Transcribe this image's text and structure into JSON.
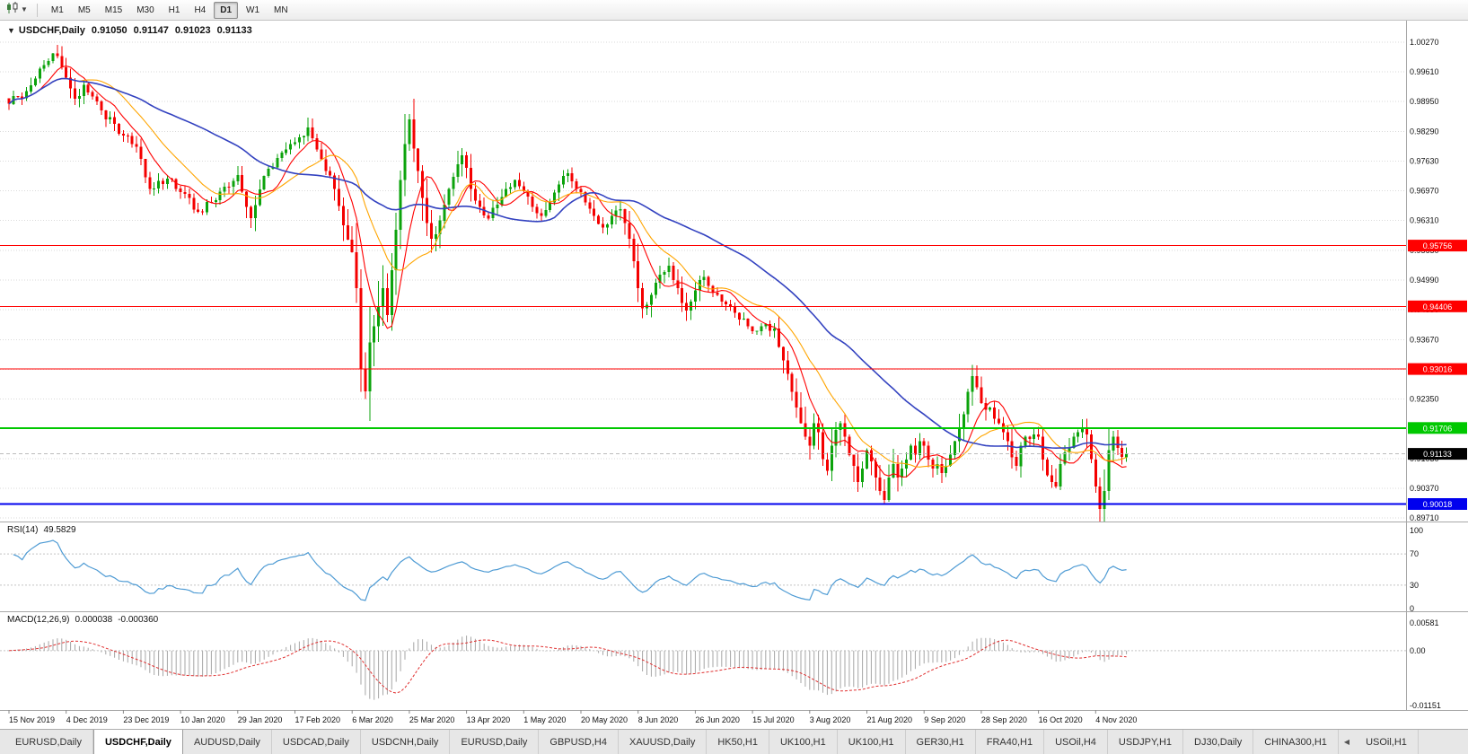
{
  "toolbar": {
    "chart_icon": "candlestick-chart-icon",
    "timeframes": [
      "M1",
      "M5",
      "M15",
      "M30",
      "H1",
      "H4",
      "D1",
      "W1",
      "MN"
    ],
    "active_timeframe": "D1"
  },
  "chart": {
    "title": "USDCHF,Daily",
    "ohlc": {
      "open": "0.91050",
      "high": "0.91147",
      "low": "0.91023",
      "close": "0.91133"
    }
  },
  "indicators": {
    "rsi": {
      "name": "RSI(14)",
      "value_text": "49.5829",
      "line_color": "#4E9BD4",
      "levels": [
        70,
        30
      ],
      "axis_labels": [
        "100",
        "70",
        "30",
        "0"
      ]
    },
    "macd": {
      "name": "MACD(12,26,9)",
      "main_value_text": "0.000038",
      "signal_value_text": "-0.000360",
      "axis_labels": [
        "0.00581",
        "0.00",
        "-0.01151"
      ],
      "scale_max": 0.00581,
      "scale_min": -0.01151,
      "histogram_color": "#A6A6A6",
      "signal_color": "#E03030"
    }
  },
  "chart_data": {
    "type": "candlestick",
    "symbol": "USDCHF",
    "period": "Daily",
    "bar_count": 255,
    "y_max": 1.0027,
    "y_min": 0.8971,
    "y_axis_labels": [
      "1.00270",
      "0.99610",
      "0.98950",
      "0.98290",
      "0.97630",
      "0.96970",
      "0.96310",
      "0.95650",
      "0.94990",
      "0.94330",
      "0.93670",
      "0.93010",
      "0.92350",
      "0.91690",
      "0.91030",
      "0.90370",
      "0.89710"
    ],
    "x_labels": [
      "15 Nov 2019",
      "4 Dec 2019",
      "23 Dec 2019",
      "10 Jan 2020",
      "29 Jan 2020",
      "17 Feb 2020",
      "6 Mar 2020",
      "25 Mar 2020",
      "13 Apr 2020",
      "1 May 2020",
      "20 May 2020",
      "8 Jun 2020",
      "26 Jun 2020",
      "15 Jul 2020",
      "3 Aug 2020",
      "21 Aug 2020",
      "9 Sep 2020",
      "28 Sep 2020",
      "16 Oct 2020",
      "4 Nov 2020"
    ],
    "bars_per_label": 13,
    "up_color": "#0CA30C",
    "down_color": "#F40000",
    "moving_averages": [
      {
        "period": 8,
        "color": "#FF0000"
      },
      {
        "period": 17,
        "color": "#FFA500"
      },
      {
        "period": 45,
        "color": "#3342C0"
      }
    ],
    "sr_lines": [
      {
        "price": 0.95756,
        "label": "0.95756",
        "color": "#FF0000",
        "thickness": 1
      },
      {
        "price": 0.94406,
        "label": "0.94406",
        "color": "#FF0000",
        "thickness": 1
      },
      {
        "price": 0.93016,
        "label": "0.93016",
        "color": "#FF0000",
        "thickness": 1
      },
      {
        "price": 0.91706,
        "label": "0.91706",
        "color": "#00C800",
        "thickness": 2
      },
      {
        "price": 0.90018,
        "label": "0.90018",
        "color": "#0000EE",
        "thickness": 2
      }
    ],
    "bid_marker": {
      "price": 0.91133,
      "label": "0.91133",
      "bg": "#000000",
      "text_color": "#FFFFFF"
    },
    "last_close": 0.91133,
    "close_keyframes": [
      [
        0,
        0.989
      ],
      [
        2,
        0.9906
      ],
      [
        4,
        0.9918
      ],
      [
        6,
        0.9946
      ],
      [
        8,
        0.9976
      ],
      [
        10,
        1.0002
      ],
      [
        11,
        0.9996
      ],
      [
        13,
        0.9948
      ],
      [
        15,
        0.9902
      ],
      [
        17,
        0.9932
      ],
      [
        19,
        0.9906
      ],
      [
        21,
        0.9876
      ],
      [
        24,
        0.9846
      ],
      [
        26,
        0.982
      ],
      [
        28,
        0.9801
      ],
      [
        30,
        0.9768
      ],
      [
        32,
        0.9701
      ],
      [
        34,
        0.9719
      ],
      [
        37,
        0.9723
      ],
      [
        40,
        0.969
      ],
      [
        43,
        0.9651
      ],
      [
        46,
        0.9672
      ],
      [
        49,
        0.9706
      ],
      [
        52,
        0.9732
      ],
      [
        54,
        0.9661
      ],
      [
        55,
        0.9636
      ],
      [
        57,
        0.97
      ],
      [
        59,
        0.9746
      ],
      [
        61,
        0.977
      ],
      [
        63,
        0.9789
      ],
      [
        66,
        0.9816
      ],
      [
        68,
        0.9838
      ],
      [
        70,
        0.9789
      ],
      [
        72,
        0.9741
      ],
      [
        74,
        0.9701
      ],
      [
        76,
        0.9621
      ],
      [
        78,
        0.9561
      ],
      [
        79,
        0.9481
      ],
      [
        80,
        0.9301
      ],
      [
        81,
        0.9252
      ],
      [
        82,
        0.9361
      ],
      [
        83,
        0.9396
      ],
      [
        84,
        0.9441
      ],
      [
        85,
        0.9481
      ],
      [
        86,
        0.9421
      ],
      [
        87,
        0.9521
      ],
      [
        88,
        0.9611
      ],
      [
        89,
        0.9721
      ],
      [
        90,
        0.9801
      ],
      [
        91,
        0.9856
      ],
      [
        92,
        0.9791
      ],
      [
        93,
        0.9741
      ],
      [
        94,
        0.9681
      ],
      [
        95,
        0.9626
      ],
      [
        96,
        0.9591
      ],
      [
        97,
        0.9601
      ],
      [
        98,
        0.9631
      ],
      [
        100,
        0.9701
      ],
      [
        102,
        0.9756
      ],
      [
        103,
        0.9776
      ],
      [
        105,
        0.9701
      ],
      [
        107,
        0.9661
      ],
      [
        109,
        0.9636
      ],
      [
        111,
        0.9666
      ],
      [
        113,
        0.9701
      ],
      [
        115,
        0.9721
      ],
      [
        117,
        0.9696
      ],
      [
        119,
        0.9661
      ],
      [
        121,
        0.9641
      ],
      [
        123,
        0.9671
      ],
      [
        125,
        0.9711
      ],
      [
        127,
        0.9736
      ],
      [
        129,
        0.9701
      ],
      [
        131,
        0.9671
      ],
      [
        133,
        0.9641
      ],
      [
        135,
        0.9616
      ],
      [
        137,
        0.9641
      ],
      [
        139,
        0.9656
      ],
      [
        141,
        0.9591
      ],
      [
        142,
        0.9541
      ],
      [
        143,
        0.9481
      ],
      [
        144,
        0.9436
      ],
      [
        146,
        0.9466
      ],
      [
        148,
        0.9511
      ],
      [
        150,
        0.9531
      ],
      [
        152,
        0.9481
      ],
      [
        154,
        0.9431
      ],
      [
        156,
        0.9476
      ],
      [
        158,
        0.9506
      ],
      [
        160,
        0.9471
      ],
      [
        162,
        0.9451
      ],
      [
        164,
        0.9441
      ],
      [
        166,
        0.9411
      ],
      [
        168,
        0.9396
      ],
      [
        170,
        0.9386
      ],
      [
        172,
        0.9401
      ],
      [
        174,
        0.9391
      ],
      [
        175,
        0.9351
      ],
      [
        176,
        0.9321
      ],
      [
        177,
        0.9291
      ],
      [
        178,
        0.9251
      ],
      [
        179,
        0.9216
      ],
      [
        180,
        0.9181
      ],
      [
        181,
        0.9151
      ],
      [
        182,
        0.9131
      ],
      [
        183,
        0.9181
      ],
      [
        184,
        0.9161
      ],
      [
        185,
        0.9101
      ],
      [
        186,
        0.9076
      ],
      [
        187,
        0.9131
      ],
      [
        188,
        0.9166
      ],
      [
        189,
        0.9181
      ],
      [
        190,
        0.9151
      ],
      [
        191,
        0.9111
      ],
      [
        192,
        0.9086
      ],
      [
        193,
        0.9051
      ],
      [
        194,
        0.9081
      ],
      [
        195,
        0.9121
      ],
      [
        196,
        0.9096
      ],
      [
        197,
        0.9061
      ],
      [
        198,
        0.9031
      ],
      [
        199,
        0.9011
      ],
      [
        200,
        0.9061
      ],
      [
        201,
        0.9091
      ],
      [
        202,
        0.9061
      ],
      [
        203,
        0.9081
      ],
      [
        204,
        0.9101
      ],
      [
        205,
        0.9131
      ],
      [
        206,
        0.9111
      ],
      [
        207,
        0.9141
      ],
      [
        208,
        0.9131
      ],
      [
        209,
        0.9101
      ],
      [
        210,
        0.9081
      ],
      [
        211,
        0.9091
      ],
      [
        212,
        0.9071
      ],
      [
        213,
        0.9086
      ],
      [
        214,
        0.9111
      ],
      [
        215,
        0.9141
      ],
      [
        216,
        0.9171
      ],
      [
        217,
        0.9201
      ],
      [
        218,
        0.9251
      ],
      [
        219,
        0.9286
      ],
      [
        220,
        0.9261
      ],
      [
        221,
        0.9226
      ],
      [
        222,
        0.9211
      ],
      [
        223,
        0.9216
      ],
      [
        224,
        0.9191
      ],
      [
        225,
        0.9181
      ],
      [
        226,
        0.9161
      ],
      [
        227,
        0.9141
      ],
      [
        228,
        0.9106
      ],
      [
        229,
        0.9086
      ],
      [
        230,
        0.9131
      ],
      [
        231,
        0.9151
      ],
      [
        232,
        0.9146
      ],
      [
        233,
        0.9156
      ],
      [
        234,
        0.9151
      ],
      [
        235,
        0.9101
      ],
      [
        236,
        0.9066
      ],
      [
        237,
        0.9051
      ],
      [
        238,
        0.9041
      ],
      [
        239,
        0.9091
      ],
      [
        240,
        0.9116
      ],
      [
        241,
        0.9126
      ],
      [
        242,
        0.9151
      ],
      [
        243,
        0.9161
      ],
      [
        244,
        0.9171
      ],
      [
        245,
        0.9156
      ],
      [
        246,
        0.9101
      ],
      [
        247,
        0.9041
      ],
      [
        248,
        0.8991
      ],
      [
        249,
        0.9031
      ],
      [
        250,
        0.9121
      ],
      [
        251,
        0.9151
      ],
      [
        252,
        0.9126
      ],
      [
        253,
        0.9106
      ],
      [
        254,
        0.91133
      ]
    ]
  },
  "tabbar": {
    "tabs": [
      "EURUSD,Daily",
      "USDCHF,Daily",
      "AUDUSD,Daily",
      "USDCAD,Daily",
      "USDCNH,Daily",
      "EURUSD,Daily",
      "GBPUSD,H4",
      "XAUUSD,Daily",
      "HK50,H1",
      "UK100,H1",
      "UK100,H1",
      "GER30,H1",
      "FRA40,H1",
      "USOil,H4",
      "USDJPY,H1",
      "DJ30,Daily",
      "CHINA300,H1",
      "USOil,H1"
    ],
    "active_index": 1,
    "scroll_left_icon": "◀"
  }
}
